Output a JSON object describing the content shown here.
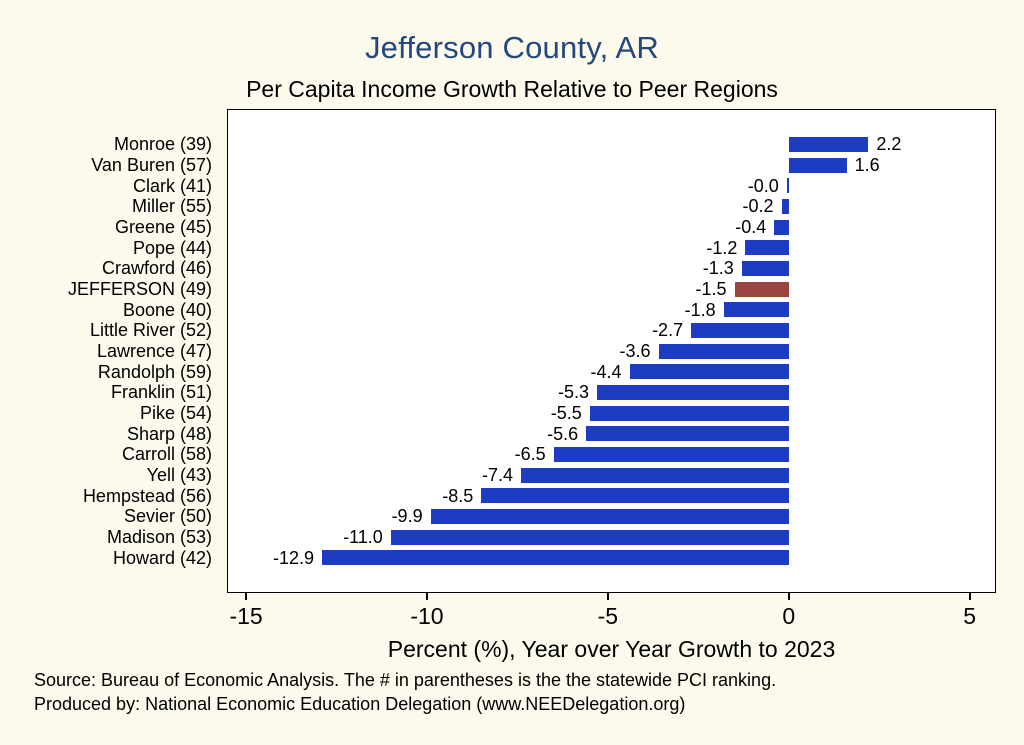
{
  "page": {
    "background": "#fbfaed"
  },
  "notes": {
    "source": "Source: Bureau of Economic Analysis. The # in parentheses is the the statewide PCI ranking.",
    "produced": "Produced by: National Economic Education Delegation (www.NEEDelegation.org)"
  },
  "chart_data": {
    "type": "bar",
    "orientation": "horizontal",
    "title": "Jefferson County, AR",
    "subtitle": "Per Capita Income Growth Relative to Peer Regions",
    "xlabel": "Percent (%), Year over Year Growth to 2023",
    "categories": [
      "Monroe (39)",
      "Van Buren (57)",
      "Clark (41)",
      "Miller (55)",
      "Greene (45)",
      "Pope (44)",
      "Crawford (46)",
      "JEFFERSON (49)",
      "Boone (40)",
      "Little River (52)",
      "Lawrence (47)",
      "Randolph (59)",
      "Franklin (51)",
      "Pike (54)",
      "Sharp (48)",
      "Carroll (58)",
      "Yell (43)",
      "Hempstead (56)",
      "Sevier (50)",
      "Madison (53)",
      "Howard (42)"
    ],
    "values": [
      2.2,
      1.6,
      -0.0,
      -0.2,
      -0.4,
      -1.2,
      -1.3,
      -1.5,
      -1.8,
      -2.7,
      -3.6,
      -4.4,
      -5.3,
      -5.5,
      -5.6,
      -6.5,
      -7.4,
      -8.5,
      -9.9,
      -11.0,
      -12.9
    ],
    "value_labels": [
      "2.2",
      "1.6",
      "-0.0",
      "-0.2",
      "-0.4",
      "-1.2",
      "-1.3",
      "-1.5",
      "-1.8",
      "-2.7",
      "-3.6",
      "-4.4",
      "-5.3",
      "-5.5",
      "-5.6",
      "-6.5",
      "-7.4",
      "-8.5",
      "-9.9",
      "-11.0",
      "-12.9"
    ],
    "highlight_index": 7,
    "highlight_category": "JEFFERSON (49)",
    "xlim": [
      -15.5,
      5.7
    ],
    "xticks": [
      -15,
      -10,
      -5,
      0,
      5
    ],
    "xtick_labels": [
      "-15",
      "-10",
      "-5",
      "0",
      "5"
    ],
    "grid": false,
    "legend": "none",
    "bar_color": "#1e3cc2",
    "highlight_color": "#9a4343",
    "title_color": "#24477c",
    "plot_background": "#ffffff"
  }
}
